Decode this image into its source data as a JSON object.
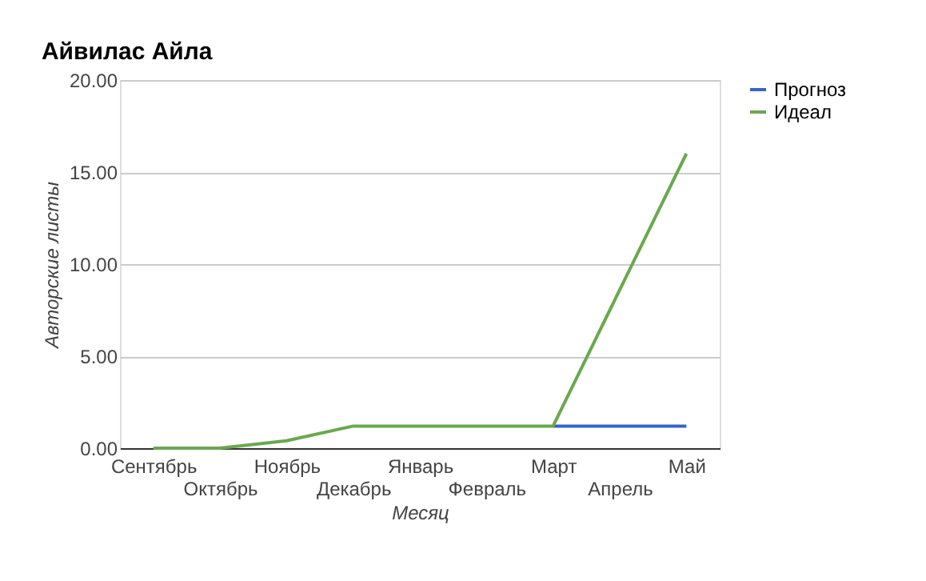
{
  "chart_data": {
    "type": "line",
    "title": "Айвилас Айла",
    "xlabel": "Месяц",
    "ylabel": "Авторские листы",
    "categories": [
      "Сентябрь",
      "Октябрь",
      "Ноябрь",
      "Декабрь",
      "Январь",
      "Февраль",
      "Март",
      "Апрель",
      "Май"
    ],
    "series": [
      {
        "name": "Прогноз",
        "color": "#3366cc",
        "values": [
          null,
          null,
          null,
          null,
          null,
          null,
          1.2,
          1.2,
          1.2
        ]
      },
      {
        "name": "Идеал",
        "color": "#6aa84f",
        "values": [
          0,
          0,
          0.4,
          1.2,
          1.2,
          1.2,
          1.2,
          8.6,
          16
        ]
      }
    ],
    "ylim": [
      0,
      20
    ],
    "yticks": [
      {
        "value": 0,
        "label": "0.00"
      },
      {
        "value": 5,
        "label": "5.00"
      },
      {
        "value": 10,
        "label": "10.00"
      },
      {
        "value": 15,
        "label": "15.00"
      },
      {
        "value": 20,
        "label": "20.00"
      }
    ],
    "grid": "y",
    "legend": "right",
    "marker": "none",
    "line_style": "solid"
  }
}
